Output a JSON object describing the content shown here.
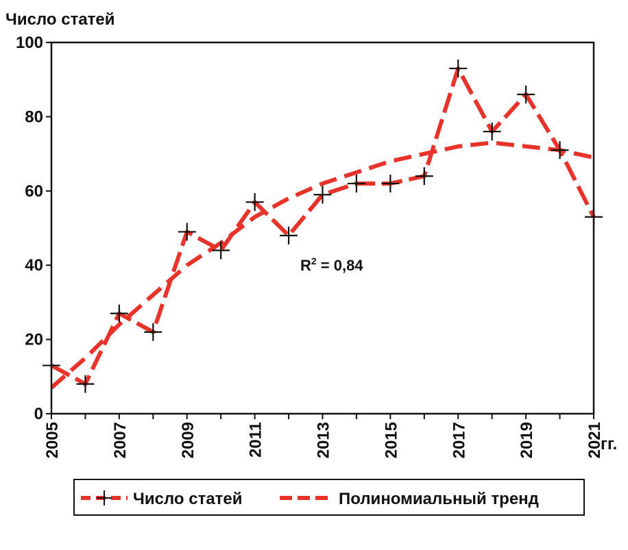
{
  "chart_data": {
    "type": "line",
    "title": "",
    "ylabel": "Число статей",
    "xlabel": "гг.",
    "x": [
      2005,
      2006,
      2007,
      2008,
      2009,
      2010,
      2011,
      2012,
      2013,
      2014,
      2015,
      2016,
      2017,
      2018,
      2019,
      2020,
      2021
    ],
    "xtick_labels": [
      "2005",
      "2007",
      "2009",
      "2011",
      "2013",
      "2015",
      "2017",
      "2019",
      "2021"
    ],
    "ytick_labels": [
      "0",
      "20",
      "40",
      "60",
      "80",
      "100"
    ],
    "xlim": [
      2005,
      2021
    ],
    "ylim": [
      0,
      100
    ],
    "grid": false,
    "legend_position": "bottom",
    "annotation": {
      "base": "R",
      "sup": "2",
      "rest": " = 0,84"
    },
    "series": [
      {
        "name": "Число статей",
        "values": [
          13,
          8,
          27,
          22,
          49,
          44,
          57,
          48,
          59,
          62,
          62,
          64,
          93,
          76,
          86,
          71,
          53
        ],
        "color": "#e8332a",
        "marker": "plus"
      },
      {
        "name": "Полиномиальный тренд",
        "values": [
          7,
          15,
          24,
          32,
          40,
          46,
          53,
          58,
          62,
          65,
          68,
          70,
          72,
          73,
          72,
          71,
          69
        ],
        "color": "#e8332a"
      }
    ]
  }
}
